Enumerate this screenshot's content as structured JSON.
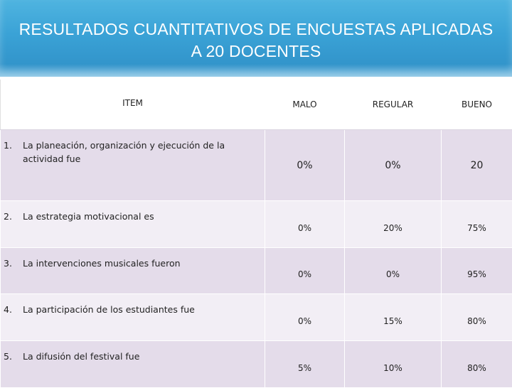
{
  "title": {
    "line1": "RESULTADOS CUANTITATIVOS DE ENCUESTAS APLICADAS",
    "line2": "A  20 DOCENTES"
  },
  "table": {
    "headers": {
      "item": "ITEM",
      "malo": "MALO",
      "regular": "REGULAR",
      "bueno": "BUENO"
    },
    "rows": [
      {
        "num": "1.",
        "text": "La planeación, organización y ejecución de la actividad  fue",
        "malo": "0%",
        "regular": "0%",
        "bueno": "20"
      },
      {
        "num": "2.",
        "text": "La estrategia motivacional es",
        "malo": "0%",
        "regular": "20%",
        "bueno": "75%"
      },
      {
        "num": "3.",
        "text": "La intervenciones musicales fueron",
        "malo": "0%",
        "regular": "0%",
        "bueno": "95%"
      },
      {
        "num": "4.",
        "text": "La participación de los estudiantes fue",
        "malo": "0%",
        "regular": "15%",
        "bueno": "80%"
      },
      {
        "num": "5.",
        "text": "La difusión del festival fue",
        "malo": "5%",
        "regular": "10%",
        "bueno": "80%"
      }
    ]
  },
  "colors": {
    "title_bg": "#3aa2d6",
    "row_dark": "#e4dcea",
    "row_light": "#f2eef5"
  }
}
